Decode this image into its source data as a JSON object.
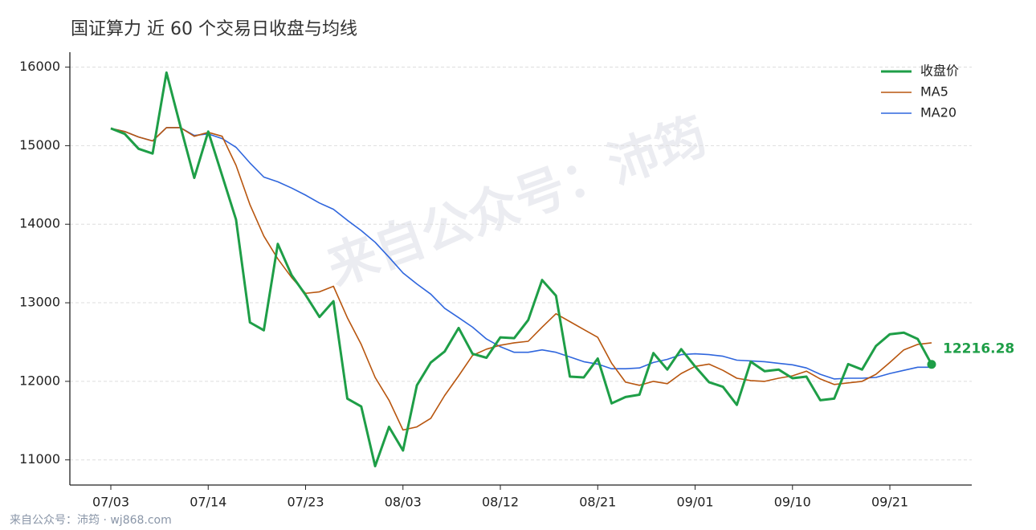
{
  "chart_data": {
    "type": "line",
    "title": "国证算力 近 60 个交易日收盘与均线",
    "categories": [
      "07/03",
      null,
      null,
      null,
      null,
      null,
      null,
      "07/14",
      null,
      null,
      null,
      null,
      null,
      null,
      "07/23",
      null,
      null,
      null,
      null,
      null,
      null,
      "08/03",
      null,
      null,
      null,
      null,
      null,
      null,
      "08/12",
      null,
      null,
      null,
      null,
      null,
      null,
      "08/21",
      null,
      null,
      null,
      null,
      null,
      null,
      "09/01",
      null,
      null,
      null,
      null,
      null,
      null,
      "09/10",
      null,
      null,
      null,
      null,
      null,
      null,
      "09/21",
      null,
      null,
      null
    ],
    "series": [
      {
        "name": "收盘价",
        "color": "#1e9e47",
        "width": 3,
        "values": [
          15220,
          15150,
          14960,
          14900,
          15930,
          15250,
          14590,
          15180,
          14620,
          14060,
          12750,
          12650,
          13750,
          13350,
          13100,
          12820,
          13020,
          11780,
          11680,
          10920,
          11420,
          11120,
          11950,
          12240,
          12380,
          12680,
          12350,
          12300,
          12560,
          12550,
          12780,
          13290,
          13090,
          12060,
          12050,
          12290,
          11720,
          11800,
          11830,
          12360,
          12150,
          12410,
          12190,
          11990,
          11930,
          11700,
          12250,
          12130,
          12150,
          12040,
          12060,
          11760,
          11780,
          12220,
          12150,
          12450,
          12600,
          12620,
          12540,
          12216.28
        ]
      },
      {
        "name": "MA5",
        "color": "#b8560f",
        "width": 1.6,
        "values": [
          15220,
          15180,
          15110,
          15060,
          15230,
          15230,
          15120,
          15170,
          15120,
          14750,
          14250,
          13850,
          13560,
          13320,
          13120,
          13140,
          13210,
          12810,
          12470,
          12050,
          11760,
          11380,
          11420,
          11530,
          11820,
          12070,
          12330,
          12410,
          12460,
          12490,
          12510,
          12690,
          12860,
          12760,
          12660,
          12560,
          12230,
          11990,
          11950,
          12000,
          11970,
          12100,
          12190,
          12220,
          12140,
          12040,
          12010,
          12000,
          12040,
          12070,
          12130,
          12030,
          11960,
          11980,
          12000,
          12090,
          12240,
          12400,
          12470,
          12490
        ]
      },
      {
        "name": "MA20",
        "color": "#2f66dd",
        "width": 1.6,
        "values": [
          15220,
          15180,
          15110,
          15060,
          15230,
          15230,
          15130,
          15150,
          15090,
          14980,
          14780,
          14600,
          14540,
          14460,
          14370,
          14270,
          14190,
          14050,
          13920,
          13770,
          13580,
          13380,
          13240,
          13110,
          12930,
          12810,
          12690,
          12540,
          12440,
          12370,
          12370,
          12400,
          12370,
          12310,
          12250,
          12220,
          12160,
          12160,
          12170,
          12240,
          12280,
          12340,
          12350,
          12340,
          12320,
          12270,
          12260,
          12250,
          12230,
          12210,
          12170,
          12090,
          12030,
          12040,
          12040,
          12050,
          12100,
          12140,
          12180,
          12180
        ]
      }
    ],
    "ylim": [
      10680,
      16190
    ],
    "yticks": [
      11000,
      12000,
      13000,
      14000,
      15000,
      16000
    ],
    "grid": true,
    "legend": "upper right",
    "watermark": "来自公众号：沛筠",
    "source": "来自公众号：沛筠 · wj868.com"
  }
}
